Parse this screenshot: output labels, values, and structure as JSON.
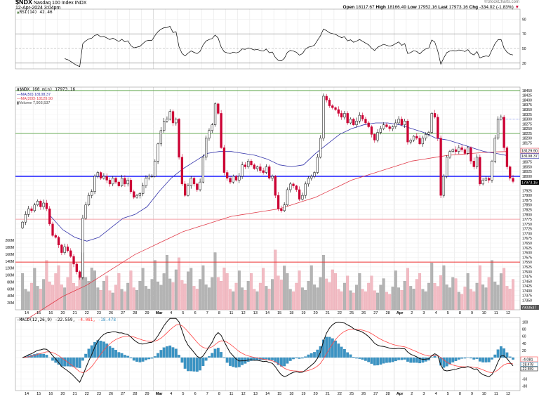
{
  "header": {
    "symbol": "$NDX",
    "name": "Nasdaq 100 Index",
    "exchange": "INDX",
    "datetime": "12-Apr-2024 3:04pm",
    "copyright": "©StockCharts.com",
    "open_label": "Open",
    "open": "18117.67",
    "high_label": "High",
    "high": "18166.49",
    "low_label": "Low",
    "low": "17952.16",
    "last_label": "Last",
    "last": "17973.16",
    "chg_label": "Chg",
    "chg": "-334.02 (-1.83%)",
    "chg_arrow": "▼"
  },
  "legends": {
    "rsi": "RSI(14) 42.46",
    "price": "$NDX (60 min) 17973.16",
    "ma50": "MA(50) 18108.37",
    "ma200": "MA(200) 18129.90",
    "volume": "Volume 7,903,537",
    "macd_name": "MACD(12,26,9)",
    "macd_val": "-22.559,",
    "macd_signal": "-4.081,",
    "macd_hist": "-18.478"
  },
  "tags": {
    "last": "17973.16",
    "ma200": "18129.90",
    "ma50": "18108.37",
    "volume": "7903537",
    "macd_signal": "-4.081",
    "macd_hist": "-18.478",
    "macd": "-22.559"
  },
  "colors": {
    "up": "#000000",
    "down": "#cc0033",
    "ma50": "#3333aa",
    "ma200": "#e03c4a",
    "vol_up": "#b4b4b4",
    "vol_down": "#f2bcc4",
    "hist": "#3a93c3",
    "macd": "#111111",
    "signal": "#ff4444"
  },
  "chart_data": {
    "type": "candlestick",
    "interval": "60 min (4 sampled bars per day)",
    "days": [
      "14",
      "15",
      "16",
      "20",
      "21",
      "22",
      "23",
      "26",
      "27",
      "28",
      "29",
      "Mar",
      "4",
      "5",
      "6",
      "7",
      "8",
      "11",
      "12",
      "13",
      "14",
      "15",
      "18",
      "19",
      "20",
      "21",
      "22",
      "25",
      "26",
      "27",
      "28",
      "Apr",
      "2",
      "3",
      "4",
      "5",
      "8",
      "9",
      "10",
      "11",
      "12"
    ],
    "closes": [
      [
        17760,
        17800,
        17830,
        17820
      ],
      [
        17850,
        17870,
        17840,
        17860
      ],
      [
        17830,
        17750,
        17690,
        17680
      ],
      [
        17640,
        17600,
        17630,
        17610
      ],
      [
        17580,
        17540,
        17500,
        17470
      ],
      [
        17780,
        17850,
        17900,
        17920
      ],
      [
        18000,
        18020,
        17990,
        18000
      ],
      [
        17980,
        17960,
        17990,
        17970
      ],
      [
        17950,
        17990,
        17960,
        17980
      ],
      [
        17920,
        17890,
        17900,
        17910
      ],
      [
        17950,
        17990,
        18000,
        18000
      ],
      [
        18080,
        18170,
        18240,
        18290
      ],
      [
        18300,
        18340,
        18280,
        18300
      ],
      [
        18100,
        17960,
        17900,
        17950
      ],
      [
        17990,
        17960,
        17930,
        17970
      ],
      [
        18100,
        18200,
        18240,
        18270
      ],
      [
        18380,
        18330,
        18150,
        18020
      ],
      [
        17990,
        17970,
        18000,
        17980
      ],
      [
        18000,
        18060,
        18050,
        18080
      ],
      [
        18060,
        18040,
        18050,
        18030
      ],
      [
        18020,
        18050,
        17990,
        18000
      ],
      [
        17900,
        17830,
        17820,
        17850
      ],
      [
        17930,
        17960,
        17950,
        17930
      ],
      [
        17880,
        17900,
        17960,
        17990
      ],
      [
        18000,
        18020,
        18100,
        18200
      ],
      [
        18420,
        18400,
        18370,
        18360
      ],
      [
        18350,
        18330,
        18310,
        18330
      ],
      [
        18280,
        18300,
        18270,
        18290
      ],
      [
        18320,
        18300,
        18280,
        18260
      ],
      [
        18220,
        18190,
        18230,
        18250
      ],
      [
        18270,
        18260,
        18250,
        18260
      ],
      [
        18280,
        18300,
        18270,
        18290
      ],
      [
        18180,
        18190,
        18210,
        18200
      ],
      [
        18170,
        18200,
        18220,
        18230
      ],
      [
        18330,
        18310,
        18200,
        17900
      ],
      [
        18000,
        18100,
        18130,
        18140
      ],
      [
        18130,
        18150,
        18140,
        18120
      ],
      [
        18150,
        18080,
        18050,
        18100
      ],
      [
        17960,
        17980,
        17990,
        17980
      ],
      [
        18080,
        18200,
        18300,
        18310
      ],
      [
        18150,
        18050,
        17990,
        17973
      ]
    ],
    "ma50": [
      null,
      null,
      17790,
      17720,
      17680,
      17660,
      17680,
      17730,
      17780,
      17800,
      17840,
      17920,
      17990,
      18040,
      18080,
      18120,
      18130,
      18130,
      18120,
      18110,
      18090,
      18060,
      18050,
      18060,
      18120,
      18170,
      18220,
      18250,
      18270,
      18280,
      18280,
      18270,
      18250,
      18230,
      18200,
      18190,
      18170,
      18150,
      18130,
      18120,
      18108
    ],
    "ma200": [
      17250,
      17290,
      17330,
      17370,
      17400,
      17430,
      17470,
      17510,
      17550,
      17590,
      17620,
      17650,
      17680,
      17710,
      17730,
      17750,
      17770,
      17790,
      17800,
      17810,
      17820,
      17830,
      17850,
      17870,
      17890,
      17920,
      17950,
      17980,
      18000,
      18020,
      18040,
      18060,
      18080,
      18090,
      18100,
      18110,
      18115,
      18120,
      18125,
      18128,
      18130
    ],
    "volume_millions_daily_avg": [
      70,
      80,
      95,
      85,
      90,
      110,
      75,
      65,
      70,
      75,
      80,
      95,
      105,
      100,
      80,
      85,
      110,
      70,
      75,
      70,
      80,
      115,
      70,
      75,
      85,
      105,
      70,
      65,
      70,
      65,
      60,
      75,
      80,
      70,
      90,
      85,
      60,
      70,
      85,
      95,
      80
    ],
    "price_axis": {
      "min": 17350,
      "max": 18450,
      "step": 25
    },
    "volume_axis": {
      "min": 20,
      "max": 200,
      "step": 20,
      "unit": "M"
    },
    "rsi_axis": [
      90,
      70,
      50,
      30
    ],
    "macd_axis": {
      "min": -80,
      "max": 100,
      "step": 20
    },
    "levels": [
      {
        "value": 18450,
        "color": "#66aa55"
      },
      {
        "value": 18225,
        "color": "#66aa55"
      },
      {
        "value": 18000,
        "color": "#1a1aff"
      },
      {
        "value": 17775,
        "color": "#f4a0a8"
      },
      {
        "value": 17550,
        "color": "#ee3333"
      }
    ],
    "dotted_level": {
      "value": 18300,
      "color": "#5566ee"
    }
  }
}
